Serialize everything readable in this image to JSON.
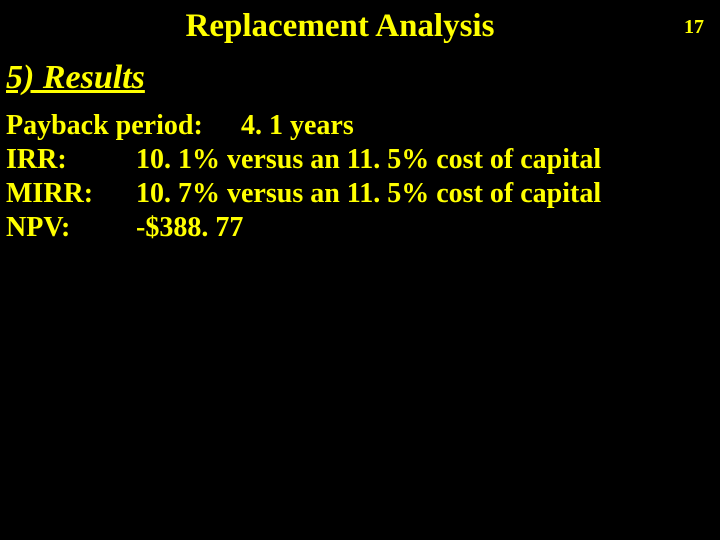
{
  "slide": {
    "title": "Replacement Analysis",
    "page_number": "17",
    "background_color": "#000000",
    "text_color": "#ffff00",
    "font_family": "Times New Roman",
    "title_fontsize": 33,
    "heading_fontsize": 34,
    "body_fontsize": 28
  },
  "section": {
    "heading": "5) Results"
  },
  "results": {
    "payback": {
      "label": "Payback period:",
      "value": "4. 1 years"
    },
    "irr": {
      "label": "IRR:",
      "value": "10. 1% versus an 11. 5% cost of capital"
    },
    "mirr": {
      "label": "MIRR:",
      "value": "10. 7% versus an 11. 5% cost of capital"
    },
    "npv": {
      "label": "NPV:",
      "value": "-$388. 77"
    }
  }
}
